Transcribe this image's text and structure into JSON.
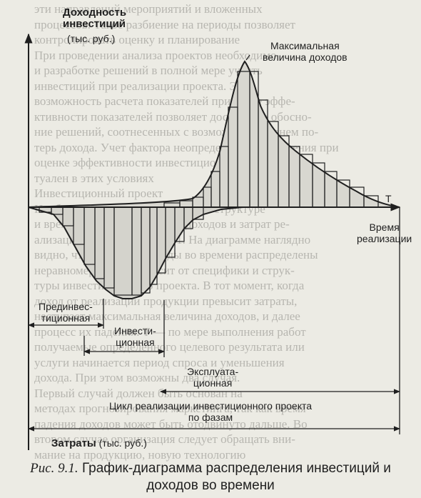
{
  "background_lines": [
    "эти направлений мероприятий и вложенных",
    "процессов. Такое разбиение на периоды позволяет",
    "контролировать оценку и планирование",
    "При проведении анализа проектов необходимо",
    "и разработке решений в полной мере учесть",
    "инвестиций при реализации проекта. Эти",
    "возможность расчета показателей при учете эффе-",
    "ктивности показателей позволяет достаточно обосно-",
    "ние решений, соотнесенных с возможным уровнем по-",
    "терь дохода. Учет фактора неопределенности решения при",
    "оценке эффективности инвестиционных проектов ак-",
    "туален в этих условиях",
    "Инвестиционный проект",
    "Наиболее полное представление о структуре",
    "и временной характеристике доходов и затрат ре-",
    "ализации показан на рис. 9.1. На диаграмме наглядно",
    "видно, что затраты и доходы во времени распределены",
    "неравномерно. Все зависит от специфики и струк-",
    "туры инвестиционного проекта. В тот момент, когда",
    "доход от реализации продукции превысит затраты,",
    "наступает максимальная величина доходов, и далее",
    "процесс их падения. Т — по мере выполнения работ",
    "получаемые определенного целевого результата или",
    "услуги начинается период спроса и уменьшения",
    "дохода. При этом возможны два случая.",
    "Первый случай должен быть основан на",
    "методах прогнозирования маркетинга, так как время",
    "падения доходов может быть отодвинуто дальше. Во",
    "втором случае организация следует обращать вни-",
    "мание на продукцию, новую технологию"
  ],
  "labels": {
    "y_axis_title": [
      "Доходность",
      "инвестиций"
    ],
    "y_axis_unit": "(тыс. руб.)",
    "peak_annotation": [
      "Максимальная",
      "величина доходов"
    ],
    "t_axis_letter": "Т",
    "time_label": [
      "Время",
      "реализации"
    ],
    "phase_pre": [
      "Прединвес-",
      "тиционная"
    ],
    "phase_invest": [
      "Инвести-",
      "ционная"
    ],
    "phase_operate": [
      "Эксплуата-",
      "ционная"
    ],
    "cycle_label": [
      "Цикл реализации инвестиционного проекта",
      "по фазам"
    ],
    "costs_label": "Затраты",
    "costs_unit": "(тыс. руб.)"
  },
  "caption": {
    "prefix": "Рис. 9.1.",
    "text": "График-диаграмма распределения инвестиций и",
    "text_line2": "доходов во времени"
  }
}
